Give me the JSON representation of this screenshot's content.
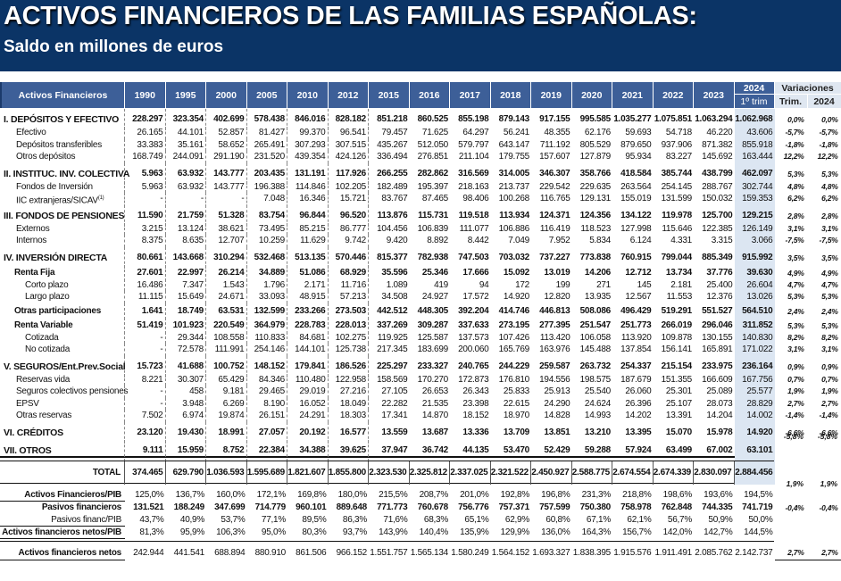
{
  "title": "ACTIVOS FINANCIEROS DE LAS FAMILIAS ESPAÑOLAS:",
  "subtitle": "Saldo en millones de euros",
  "colors": {
    "banner": "#0b3466",
    "header": "#3d5f98",
    "highlight_column": "#dce6f2",
    "variations_header": "#dfe7f1"
  },
  "header": {
    "label": "Activos Financieros",
    "years": [
      "1990",
      "1995",
      "2000",
      "2005",
      "2010",
      "2012",
      "2015",
      "2016",
      "2017",
      "2018",
      "2019",
      "2020",
      "2021",
      "2022",
      "2023"
    ],
    "current_year": "2024",
    "current_period": "1º trim",
    "variations": "Variaciones",
    "var_trim": "Trim.",
    "var_year": "2024"
  },
  "rows": [
    {
      "type": "section",
      "label": "I. DEPÓSITOS Y EFECTIVO",
      "values": [
        "228.297",
        "323.354",
        "402.699",
        "578.438",
        "846.016",
        "828.182",
        "851.218",
        "860.525",
        "855.198",
        "879.143",
        "917.155",
        "995.585",
        "1.035.277",
        "1.075.851",
        "1.063.294",
        "1.062.968"
      ],
      "trim": "0,0%",
      "var": "0,0%"
    },
    {
      "type": "item",
      "label": "Efectivo",
      "values": [
        "26.165",
        "44.101",
        "52.857",
        "81.427",
        "99.370",
        "96.541",
        "79.457",
        "71.625",
        "64.297",
        "56.241",
        "48.355",
        "62.176",
        "59.693",
        "54.718",
        "46.220",
        "43.606"
      ],
      "trim": "-5,7%",
      "var": "-5,7%"
    },
    {
      "type": "item",
      "label": "Depósitos transferibles",
      "values": [
        "33.383",
        "35.161",
        "58.652",
        "265.491",
        "307.293",
        "307.515",
        "435.267",
        "512.050",
        "579.797",
        "643.147",
        "711.192",
        "805.529",
        "879.650",
        "937.906",
        "871.382",
        "855.918"
      ],
      "trim": "-1,8%",
      "var": "-1,8%"
    },
    {
      "type": "item",
      "label": "Otros depósitos",
      "values": [
        "168.749",
        "244.091",
        "291.190",
        "231.520",
        "439.354",
        "424.126",
        "336.494",
        "276.851",
        "211.104",
        "179.755",
        "157.607",
        "127.879",
        "95.934",
        "83.227",
        "145.692",
        "163.444"
      ],
      "trim": "12,2%",
      "var": "12,2%"
    },
    {
      "type": "section",
      "label": "II. INSTITUC. INV. COLECTIVA",
      "values": [
        "5.963",
        "63.932",
        "143.777",
        "203.435",
        "131.191",
        "117.926",
        "266.255",
        "282.862",
        "316.569",
        "314.005",
        "346.307",
        "358.766",
        "418.584",
        "385.744",
        "438.799",
        "462.097"
      ],
      "trim": "5,3%",
      "var": "5,3%"
    },
    {
      "type": "item",
      "label": "Fondos de Inversión",
      "values": [
        "5.963",
        "63.932",
        "143.777",
        "196.388",
        "114.846",
        "102.205",
        "182.489",
        "195.397",
        "218.163",
        "213.737",
        "229.542",
        "229.635",
        "263.564",
        "254.145",
        "288.767",
        "302.744"
      ],
      "trim": "4,8%",
      "var": "4,8%"
    },
    {
      "type": "item",
      "label": "IIC extranjeras/SICAV",
      "footnote": "(1)",
      "values": [
        "-",
        "-",
        "-",
        "7.048",
        "16.346",
        "15.721",
        "83.767",
        "87.465",
        "98.406",
        "100.268",
        "116.765",
        "129.131",
        "155.019",
        "131.599",
        "150.032",
        "159.353"
      ],
      "trim": "6,2%",
      "var": "6,2%"
    },
    {
      "type": "section",
      "label": "III. FONDOS DE PENSIONES",
      "values": [
        "11.590",
        "21.759",
        "51.328",
        "83.754",
        "96.844",
        "96.520",
        "113.876",
        "115.731",
        "119.518",
        "113.934",
        "124.371",
        "124.356",
        "134.122",
        "119.978",
        "125.700",
        "129.215"
      ],
      "trim": "2,8%",
      "var": "2,8%"
    },
    {
      "type": "item",
      "label": "Externos",
      "values": [
        "3.215",
        "13.124",
        "38.621",
        "73.495",
        "85.215",
        "86.777",
        "104.456",
        "106.839",
        "111.077",
        "106.886",
        "116.419",
        "118.523",
        "127.998",
        "115.646",
        "122.385",
        "126.149"
      ],
      "trim": "3,1%",
      "var": "3,1%"
    },
    {
      "type": "item",
      "label": "Internos",
      "values": [
        "8.375",
        "8.635",
        "12.707",
        "10.259",
        "11.629",
        "9.742",
        "9.420",
        "8.892",
        "8.442",
        "7.049",
        "7.952",
        "5.834",
        "6.124",
        "4.331",
        "3.315",
        "3.066"
      ],
      "trim": "-7,5%",
      "var": "-7,5%"
    },
    {
      "type": "section",
      "label": "IV. INVERSIÓN DIRECTA",
      "values": [
        "80.661",
        "143.668",
        "310.294",
        "532.468",
        "513.135",
        "570.446",
        "815.377",
        "782.938",
        "747.503",
        "703.032",
        "737.227",
        "773.838",
        "760.915",
        "799.044",
        "885.349",
        "915.992"
      ],
      "trim": "3,5%",
      "var": "3,5%"
    },
    {
      "type": "subsection",
      "label": "Renta Fija",
      "values": [
        "27.601",
        "22.997",
        "26.214",
        "34.889",
        "51.086",
        "68.929",
        "35.596",
        "25.346",
        "17.666",
        "15.092",
        "13.019",
        "14.206",
        "12.712",
        "13.734",
        "37.776",
        "39.630"
      ],
      "trim": "4,9%",
      "var": "4,9%"
    },
    {
      "type": "subitem",
      "label": "Corto plazo",
      "values": [
        "16.486",
        "7.347",
        "1.543",
        "1.796",
        "2.171",
        "11.716",
        "1.089",
        "419",
        "94",
        "172",
        "199",
        "271",
        "145",
        "2.181",
        "25.400",
        "26.604"
      ],
      "trim": "4,7%",
      "var": "4,7%"
    },
    {
      "type": "subitem",
      "label": "Largo plazo",
      "values": [
        "11.115",
        "15.649",
        "24.671",
        "33.093",
        "48.915",
        "57.213",
        "34.508",
        "24.927",
        "17.572",
        "14.920",
        "12.820",
        "13.935",
        "12.567",
        "11.553",
        "12.376",
        "13.026"
      ],
      "trim": "5,3%",
      "var": "5,3%"
    },
    {
      "type": "subsection",
      "label": "Otras participaciones",
      "values": [
        "1.641",
        "18.749",
        "63.531",
        "132.599",
        "233.266",
        "273.503",
        "442.512",
        "448.305",
        "392.204",
        "414.746",
        "446.813",
        "508.086",
        "496.429",
        "519.291",
        "551.527",
        "564.510"
      ],
      "trim": "2,4%",
      "var": "2,4%"
    },
    {
      "type": "subsection",
      "label": "Renta Variable",
      "values": [
        "51.419",
        "101.923",
        "220.549",
        "364.979",
        "228.783",
        "228.013",
        "337.269",
        "309.287",
        "337.633",
        "273.195",
        "277.395",
        "251.547",
        "251.773",
        "266.019",
        "296.046",
        "311.852"
      ],
      "trim": "5,3%",
      "var": "5,3%"
    },
    {
      "type": "subitem",
      "label": "Cotizada",
      "values": [
        "-",
        "29.344",
        "108.558",
        "110.833",
        "84.681",
        "102.275",
        "119.925",
        "125.587",
        "137.573",
        "107.426",
        "113.420",
        "106.058",
        "113.920",
        "109.878",
        "130.155",
        "140.830"
      ],
      "trim": "8,2%",
      "var": "8,2%"
    },
    {
      "type": "subitem",
      "label": "No cotizada",
      "values": [
        "-",
        "72.578",
        "111.991",
        "254.146",
        "144.101",
        "125.738",
        "217.345",
        "183.699",
        "200.060",
        "165.769",
        "163.976",
        "145.488",
        "137.854",
        "156.141",
        "165.891",
        "171.022"
      ],
      "trim": "3,1%",
      "var": "3,1%"
    },
    {
      "type": "section",
      "label": "V. SEGUROS/Ent.Prev.Social",
      "values": [
        "15.723",
        "41.688",
        "100.752",
        "148.152",
        "179.841",
        "186.526",
        "225.297",
        "233.327",
        "240.765",
        "244.229",
        "259.587",
        "263.732",
        "254.337",
        "215.154",
        "233.975",
        "236.164"
      ],
      "trim": "0,9%",
      "var": "0,9%"
    },
    {
      "type": "item",
      "label": "Reservas vida",
      "values": [
        "8.221",
        "30.307",
        "65.429",
        "84.346",
        "110.480",
        "122.958",
        "158.569",
        "170.270",
        "172.873",
        "176.810",
        "194.556",
        "198.575",
        "187.679",
        "151.355",
        "166.609",
        "167.756"
      ],
      "trim": "0,7%",
      "var": "0,7%"
    },
    {
      "type": "item",
      "label": "Seguros colectivos pensiones",
      "values": [
        "-",
        "458",
        "9.181",
        "29.465",
        "29.019",
        "27.216",
        "27.105",
        "26.653",
        "26.343",
        "25.833",
        "25.913",
        "25.540",
        "26.060",
        "25.301",
        "25.089",
        "25.577"
      ],
      "trim": "1,9%",
      "var": "1,9%"
    },
    {
      "type": "item",
      "label": "EPSV",
      "values": [
        "-",
        "3.948",
        "6.269",
        "8.190",
        "16.052",
        "18.049",
        "22.282",
        "21.535",
        "23.398",
        "22.615",
        "24.290",
        "24.624",
        "26.396",
        "25.107",
        "28.073",
        "28.829"
      ],
      "trim": "2,7%",
      "var": "2,7%"
    },
    {
      "type": "item",
      "label": "Otras reservas",
      "values": [
        "7.502",
        "6.974",
        "19.874",
        "26.151",
        "24.291",
        "18.303",
        "17.341",
        "14.870",
        "18.152",
        "18.970",
        "14.828",
        "14.993",
        "14.202",
        "13.391",
        "14.204",
        "14.002"
      ],
      "trim": "-1,4%",
      "var": "-1,4%"
    },
    {
      "type": "section",
      "label": "VI. CRÉDITOS",
      "values": [
        "23.120",
        "19.430",
        "18.991",
        "27.057",
        "20.192",
        "16.577",
        "13.559",
        "13.687",
        "13.336",
        "13.709",
        "13.851",
        "13.210",
        "13.395",
        "15.070",
        "15.978",
        "14.920"
      ],
      "trim": "-6,6%",
      "var": "-6,6%"
    },
    {
      "type": "section",
      "label": "VII. OTROS",
      "values": [
        "9.111",
        "15.959",
        "8.752",
        "22.384",
        "34.388",
        "39.625",
        "37.947",
        "36.742",
        "44.135",
        "53.470",
        "52.429",
        "59.288",
        "57.924",
        "63.499",
        "67.002",
        "63.101"
      ],
      "trim": "-5,8%",
      "var": "-5,8%"
    }
  ],
  "total": {
    "label": "TOTAL",
    "values": [
      "374.465",
      "629.790",
      "1.036.593",
      "1.595.689",
      "1.821.607",
      "1.855.800",
      "2.323.530",
      "2.325.812",
      "2.337.025",
      "2.321.522",
      "2.450.927",
      "2.588.775",
      "2.674.554",
      "2.674.339",
      "2.830.097",
      "2.884.456"
    ],
    "trim": "1,9%",
    "var": "1,9%"
  },
  "summary": [
    {
      "label": "Activos Financieros/PIB",
      "style": "bold-label",
      "values": [
        "125,0%",
        "136,7%",
        "160,0%",
        "172,1%",
        "169,8%",
        "180,0%",
        "215,5%",
        "208,7%",
        "201,0%",
        "192,8%",
        "196,8%",
        "231,3%",
        "218,8%",
        "198,6%",
        "193,6%",
        "194,5%"
      ]
    },
    {
      "label": "Pasivos financieros",
      "style": "bold",
      "values": [
        "131.521",
        "188.249",
        "347.699",
        "714.779",
        "960.101",
        "889.648",
        "771.773",
        "760.678",
        "756.776",
        "757.371",
        "757.599",
        "750.380",
        "758.978",
        "762.848",
        "744.335",
        "741.719"
      ],
      "trim": "-0,4%",
      "var": "-0,4%"
    },
    {
      "label": "Pasivos financ/PIB",
      "style": "plain",
      "values": [
        "43,7%",
        "40,9%",
        "53,7%",
        "77,1%",
        "89,5%",
        "86,3%",
        "71,6%",
        "68,3%",
        "65,1%",
        "62,9%",
        "60,8%",
        "67,1%",
        "62,1%",
        "56,7%",
        "50,9%",
        "50,0%"
      ]
    },
    {
      "label": "Activos financieros netos/PIB",
      "style": "bold-label",
      "values": [
        "81,3%",
        "95,9%",
        "106,3%",
        "95,0%",
        "80,3%",
        "93,7%",
        "143,9%",
        "140,4%",
        "135,9%",
        "129,9%",
        "136,0%",
        "164,3%",
        "156,7%",
        "142,0%",
        "142,7%",
        "144,5%"
      ]
    },
    {
      "label": "Activos financieros netos",
      "style": "bold-label",
      "values": [
        "242.944",
        "441.541",
        "688.894",
        "880.910",
        "861.506",
        "966.152",
        "1.551.757",
        "1.565.134",
        "1.580.249",
        "1.564.152",
        "1.693.327",
        "1.838.395",
        "1.915.576",
        "1.911.491",
        "2.085.762",
        "2.142.737"
      ],
      "trim": "2,7%",
      "var": "2,7%"
    }
  ]
}
